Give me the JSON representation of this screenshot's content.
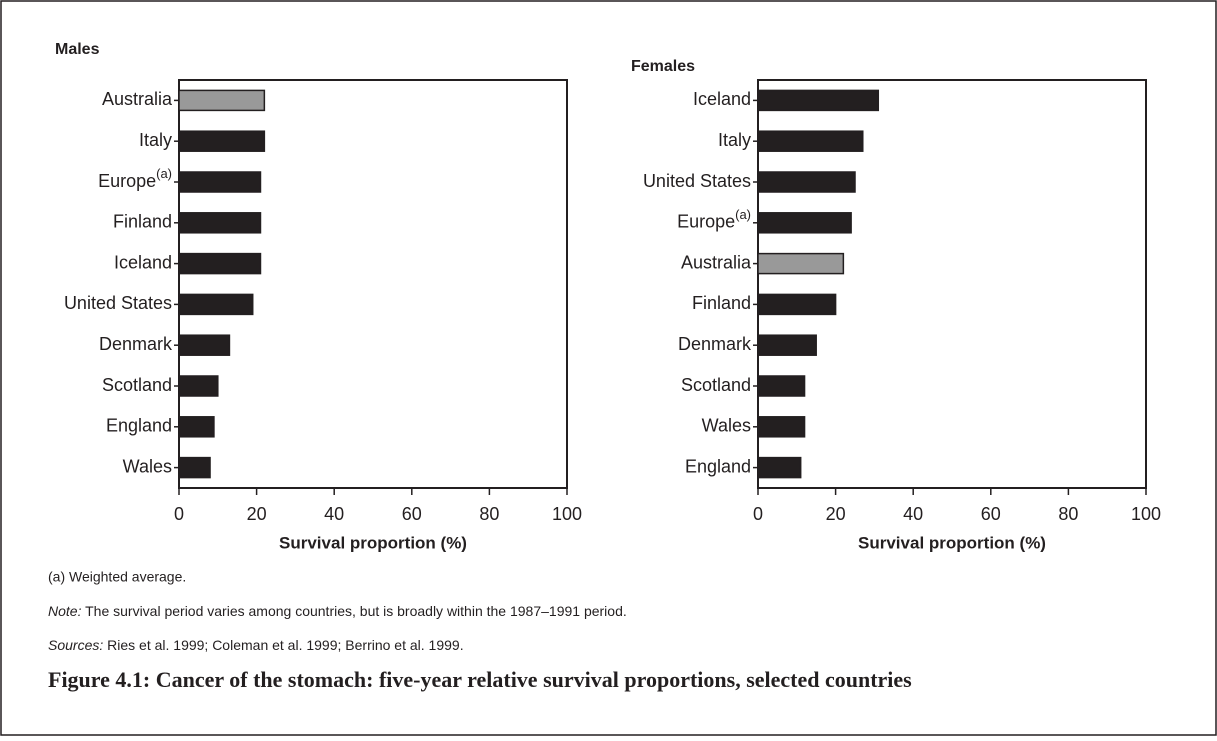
{
  "chart_data": [
    {
      "type": "bar",
      "orientation": "horizontal",
      "title": "Males",
      "categories": [
        "Australia",
        "Italy",
        "Europe(a)",
        "Finland",
        "Iceland",
        "United States",
        "Denmark",
        "Scotland",
        "England",
        "Wales"
      ],
      "values": [
        22,
        22,
        21,
        21,
        21,
        19,
        13,
        10,
        9,
        8
      ],
      "colors": [
        "#999999",
        "#231f20",
        "#231f20",
        "#231f20",
        "#231f20",
        "#231f20",
        "#231f20",
        "#231f20",
        "#231f20",
        "#231f20"
      ],
      "xlabel": "Survival proportion (%)",
      "xlim": [
        0,
        100
      ],
      "xticks": [
        0,
        20,
        40,
        60,
        80,
        100
      ]
    },
    {
      "type": "bar",
      "orientation": "horizontal",
      "title": "Females",
      "categories": [
        "Iceland",
        "Italy",
        "United States",
        "Europe(a)",
        "Australia",
        "Finland",
        "Denmark",
        "Scotland",
        "Wales",
        "England"
      ],
      "values": [
        31,
        27,
        25,
        24,
        22,
        20,
        15,
        12,
        12,
        11
      ],
      "colors": [
        "#231f20",
        "#231f20",
        "#231f20",
        "#231f20",
        "#999999",
        "#231f20",
        "#231f20",
        "#231f20",
        "#231f20",
        "#231f20"
      ],
      "xlabel": "Survival proportion (%)",
      "xlim": [
        0,
        100
      ],
      "xticks": [
        0,
        20,
        40,
        60,
        80,
        100
      ]
    }
  ],
  "footnote": "(a) Weighted average.",
  "note": {
    "label": "Note:",
    "text": " The survival period varies among countries, but is broadly within the 1987–1991 period."
  },
  "sources": {
    "label": "Sources:",
    "text": " Ries et al. 1999; Coleman et al. 1999; Berrino et al. 1999."
  },
  "caption": "Figure 4.1: Cancer of the stomach: five-year relative survival proportions, selected countries"
}
